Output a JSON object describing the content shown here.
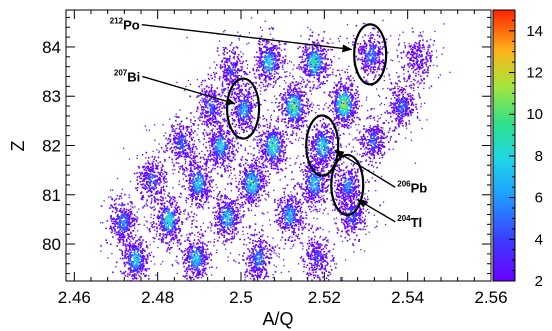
{
  "chart_data": {
    "type": "heatmap",
    "title": "",
    "xlabel": "A/Q",
    "ylabel": "Z",
    "xlim": [
      2.458,
      2.56
    ],
    "ylim": [
      79.25,
      84.75
    ],
    "x_ticks": [
      2.46,
      2.48,
      2.5,
      2.52,
      2.54,
      2.56
    ],
    "x_tick_labels": [
      "2.46",
      "2.48",
      "2.5",
      "2.52",
      "2.54",
      "2.56"
    ],
    "y_ticks": [
      80,
      81,
      82,
      83,
      84
    ],
    "y_tick_labels": [
      "80",
      "81",
      "82",
      "83",
      "84"
    ],
    "colorbar": {
      "range": [
        2,
        15
      ],
      "ticks": [
        2,
        4,
        6,
        8,
        10,
        12,
        14
      ],
      "tick_labels": [
        "2",
        "4",
        "6",
        "8",
        "10",
        "12",
        "14"
      ]
    },
    "clusters": [
      {
        "x": 2.4745,
        "z": 79.7,
        "intensity": 8
      },
      {
        "x": 2.489,
        "z": 79.72,
        "intensity": 8
      },
      {
        "x": 2.504,
        "z": 79.72,
        "intensity": 6
      },
      {
        "x": 2.518,
        "z": 79.75,
        "intensity": 4
      },
      {
        "x": 2.4715,
        "z": 80.45,
        "intensity": 6
      },
      {
        "x": 2.4825,
        "z": 80.5,
        "intensity": 9
      },
      {
        "x": 2.4965,
        "z": 80.55,
        "intensity": 8
      },
      {
        "x": 2.5115,
        "z": 80.6,
        "intensity": 7
      },
      {
        "x": 2.5265,
        "z": 80.6,
        "intensity": 5
      },
      {
        "x": 2.4785,
        "z": 81.3,
        "intensity": 5
      },
      {
        "x": 2.4895,
        "z": 81.25,
        "intensity": 8
      },
      {
        "x": 2.5025,
        "z": 81.25,
        "intensity": 10
      },
      {
        "x": 2.5175,
        "z": 81.25,
        "intensity": 8
      },
      {
        "x": 2.5255,
        "z": 81.2,
        "intensity": 6
      },
      {
        "x": 2.4855,
        "z": 82.05,
        "intensity": 5
      },
      {
        "x": 2.495,
        "z": 82.0,
        "intensity": 8
      },
      {
        "x": 2.5075,
        "z": 82.0,
        "intensity": 10
      },
      {
        "x": 2.5195,
        "z": 82.0,
        "intensity": 9
      },
      {
        "x": 2.5315,
        "z": 82.1,
        "intensity": 5
      },
      {
        "x": 2.4925,
        "z": 82.8,
        "intensity": 5
      },
      {
        "x": 2.5005,
        "z": 82.75,
        "intensity": 7
      },
      {
        "x": 2.5125,
        "z": 82.8,
        "intensity": 11
      },
      {
        "x": 2.5245,
        "z": 82.85,
        "intensity": 12
      },
      {
        "x": 2.5385,
        "z": 82.8,
        "intensity": 5
      },
      {
        "x": 2.4975,
        "z": 83.55,
        "intensity": 4
      },
      {
        "x": 2.5065,
        "z": 83.7,
        "intensity": 8
      },
      {
        "x": 2.5175,
        "z": 83.7,
        "intensity": 10
      },
      {
        "x": 2.531,
        "z": 83.85,
        "intensity": 6
      },
      {
        "x": 2.5425,
        "z": 83.75,
        "intensity": 3
      }
    ],
    "annotations": [
      {
        "mass": "212",
        "element": "Po",
        "ellipse": {
          "x": 2.531,
          "z": 83.85
        },
        "label": {
          "x": 2.4685,
          "z": 84.35
        },
        "arrow_to": {
          "x": 2.5265,
          "z": 83.95
        }
      },
      {
        "mass": "207",
        "element": "Bi",
        "ellipse": {
          "x": 2.5005,
          "z": 82.75
        },
        "label": {
          "x": 2.4695,
          "z": 83.3
        },
        "arrow_to": {
          "x": 2.4985,
          "z": 82.85
        }
      },
      {
        "mass": "206",
        "element": "Pb",
        "ellipse": {
          "x": 2.5195,
          "z": 82.0
        },
        "label": {
          "x": 2.5375,
          "z": 81.05
        },
        "arrow_to": {
          "x": 2.5225,
          "z": 81.9
        }
      },
      {
        "mass": "204",
        "element": "Tl",
        "ellipse": {
          "x": 2.5255,
          "z": 81.2
        },
        "label": {
          "x": 2.5375,
          "z": 80.35
        },
        "arrow_to": {
          "x": 2.528,
          "z": 80.9
        }
      }
    ]
  }
}
